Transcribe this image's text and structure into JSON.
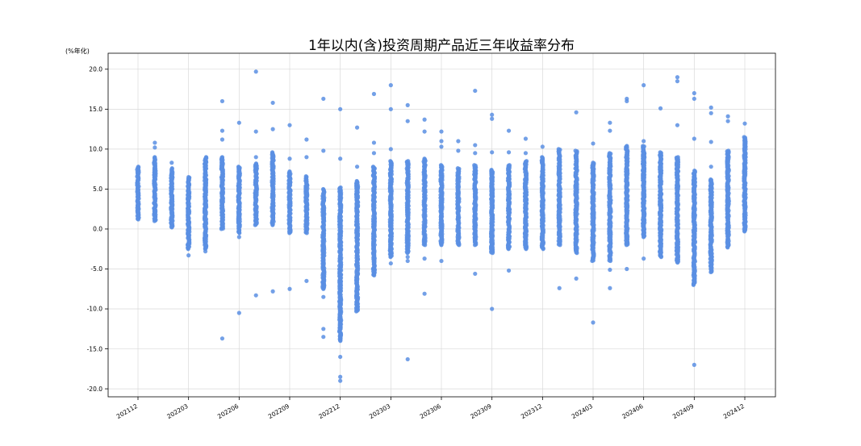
{
  "chart_data": {
    "type": "scatter",
    "title": "1年以内(含)投资周期产品近三年收益率分布",
    "y_unit_label": "(%年化)",
    "ylim": [
      -21,
      22
    ],
    "yticks": [
      -20.0,
      -15.0,
      -10.0,
      -5.0,
      0.0,
      5.0,
      10.0,
      15.0,
      20.0
    ],
    "ytick_labels": [
      "-20.0",
      "-15.0",
      "-10.0",
      "-5.0",
      "0.0",
      "5.0",
      "10.0",
      "15.0",
      "20.0"
    ],
    "xtick_labels": [
      "202112",
      "202203",
      "202206",
      "202209",
      "202212",
      "202303",
      "202306",
      "202309",
      "202312",
      "202403",
      "202406",
      "202409",
      "202412"
    ],
    "months": [
      "202112",
      "202201",
      "202202",
      "202203",
      "202204",
      "202205",
      "202206",
      "202207",
      "202208",
      "202209",
      "202210",
      "202211",
      "202212",
      "202301",
      "202302",
      "202303",
      "202304",
      "202305",
      "202306",
      "202307",
      "202308",
      "202309",
      "202310",
      "202311",
      "202312",
      "202401",
      "202402",
      "202403",
      "202404",
      "202405",
      "202406",
      "202407",
      "202408",
      "202409",
      "202410",
      "202411",
      "202412"
    ],
    "grid": true,
    "point_color": "#5b8fe3",
    "series": [
      {
        "month": "202112",
        "range": [
          1.2,
          7.8
        ],
        "outliers": []
      },
      {
        "month": "202201",
        "range": [
          1.0,
          9.0
        ],
        "outliers": [
          10.2,
          10.8
        ]
      },
      {
        "month": "202202",
        "range": [
          0.2,
          7.6
        ],
        "outliers": [
          8.3
        ]
      },
      {
        "month": "202203",
        "range": [
          -2.5,
          6.5
        ],
        "outliers": [
          -3.3
        ]
      },
      {
        "month": "202204",
        "range": [
          -2.5,
          9.0
        ],
        "outliers": [
          -2.8
        ]
      },
      {
        "month": "202205",
        "range": [
          0.0,
          9.0
        ],
        "outliers": [
          11.2,
          12.3,
          16.0,
          -13.7
        ]
      },
      {
        "month": "202206",
        "range": [
          -0.5,
          7.8
        ],
        "outliers": [
          13.3,
          -1.0,
          -10.5
        ]
      },
      {
        "month": "202207",
        "range": [
          0.5,
          8.2
        ],
        "outliers": [
          9.0,
          12.2,
          19.7,
          -8.3
        ]
      },
      {
        "month": "202208",
        "range": [
          0.5,
          9.6
        ],
        "outliers": [
          12.5,
          15.8,
          -7.8
        ]
      },
      {
        "month": "202209",
        "range": [
          -0.5,
          7.2
        ],
        "outliers": [
          8.8,
          13.0,
          -7.5
        ]
      },
      {
        "month": "202210",
        "range": [
          -0.5,
          6.6
        ],
        "outliers": [
          9.0,
          11.2,
          -6.5
        ]
      },
      {
        "month": "202211",
        "range": [
          -7.5,
          5.0
        ],
        "outliers": [
          9.8,
          16.3,
          -12.5,
          -13.5,
          -8.5
        ]
      },
      {
        "month": "202212",
        "range": [
          -14.0,
          5.2
        ],
        "outliers": [
          8.8,
          15.0,
          -16.0,
          -18.5,
          -19.0
        ]
      },
      {
        "month": "202301",
        "range": [
          -10.3,
          6.0
        ],
        "outliers": [
          7.8,
          12.7
        ]
      },
      {
        "month": "202302",
        "range": [
          -5.8,
          7.8
        ],
        "outliers": [
          9.5,
          10.8,
          16.9
        ]
      },
      {
        "month": "202303",
        "range": [
          -3.5,
          8.5
        ],
        "outliers": [
          10.0,
          15.0,
          18.0,
          -4.3
        ]
      },
      {
        "month": "202304",
        "range": [
          -3.0,
          8.5
        ],
        "outliers": [
          13.5,
          15.5,
          -3.5,
          -4.0,
          -16.3
        ]
      },
      {
        "month": "202305",
        "range": [
          -2.0,
          8.8
        ],
        "outliers": [
          12.2,
          13.7,
          -3.7,
          -8.1
        ]
      },
      {
        "month": "202306",
        "range": [
          -2.0,
          8.0
        ],
        "outliers": [
          10.3,
          11.0,
          12.2,
          -4.0
        ]
      },
      {
        "month": "202307",
        "range": [
          -2.0,
          7.6
        ],
        "outliers": [
          9.8,
          11.0
        ]
      },
      {
        "month": "202308",
        "range": [
          -2.0,
          8.0
        ],
        "outliers": [
          9.5,
          10.5,
          17.3,
          -5.6
        ]
      },
      {
        "month": "202309",
        "range": [
          -3.0,
          7.4
        ],
        "outliers": [
          9.6,
          13.8,
          14.3,
          -10.0
        ]
      },
      {
        "month": "202310",
        "range": [
          -2.5,
          8.0
        ],
        "outliers": [
          9.6,
          12.3,
          -5.2
        ]
      },
      {
        "month": "202311",
        "range": [
          -2.5,
          8.5
        ],
        "outliers": [
          9.5,
          11.3
        ]
      },
      {
        "month": "202312",
        "range": [
          -2.5,
          9.0
        ],
        "outliers": [
          10.3
        ]
      },
      {
        "month": "202401",
        "range": [
          -2.0,
          10.0
        ],
        "outliers": [
          -7.4
        ]
      },
      {
        "month": "202402",
        "range": [
          -3.0,
          9.8
        ],
        "outliers": [
          14.6,
          -6.2
        ]
      },
      {
        "month": "202403",
        "range": [
          -4.0,
          8.3
        ],
        "outliers": [
          10.7,
          -11.7
        ]
      },
      {
        "month": "202404",
        "range": [
          -4.0,
          9.5
        ],
        "outliers": [
          12.3,
          13.3,
          -7.4,
          -5.1
        ]
      },
      {
        "month": "202405",
        "range": [
          -2.0,
          10.4
        ],
        "outliers": [
          16.0,
          16.3,
          -5.0
        ]
      },
      {
        "month": "202406",
        "range": [
          -1.0,
          10.4
        ],
        "outliers": [
          11.0,
          18.0,
          -3.7
        ]
      },
      {
        "month": "202407",
        "range": [
          -3.5,
          9.6
        ],
        "outliers": [
          15.1
        ]
      },
      {
        "month": "202408",
        "range": [
          -4.2,
          9.0
        ],
        "outliers": [
          13.0,
          18.5,
          19.0
        ]
      },
      {
        "month": "202409",
        "range": [
          -7.0,
          7.3
        ],
        "outliers": [
          11.3,
          16.3,
          17.0,
          -17.0
        ]
      },
      {
        "month": "202410",
        "range": [
          -5.4,
          6.2
        ],
        "outliers": [
          7.8,
          10.9,
          14.5,
          15.2
        ]
      },
      {
        "month": "202411",
        "range": [
          -2.3,
          9.8
        ],
        "outliers": [
          13.5,
          14.1
        ]
      },
      {
        "month": "202412",
        "range": [
          -0.3,
          11.5
        ],
        "outliers": [
          13.2
        ]
      }
    ]
  }
}
